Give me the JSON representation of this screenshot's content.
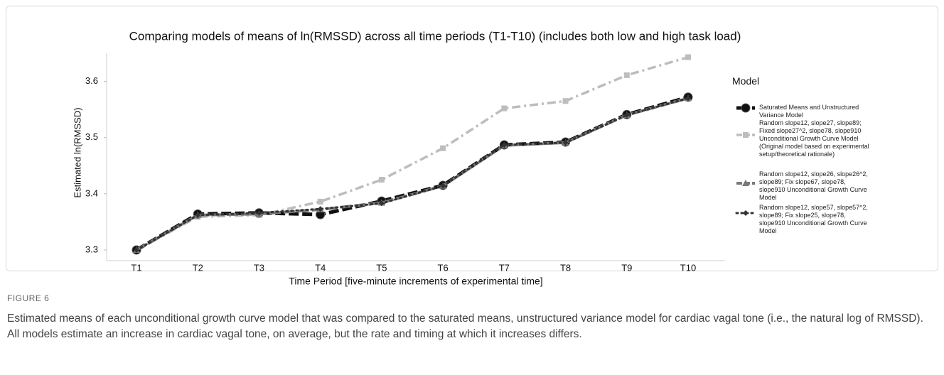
{
  "chart_data": {
    "type": "line",
    "title": "Comparing models of means of ln(RMSSD) across all time periods (T1-T10) (includes both low and high task load)",
    "x_label": "Time Period [five-minute increments of experimental time]",
    "y_label": "Estimated ln(RMSSD)",
    "legend_title": "Model",
    "categories": [
      "T1",
      "T2",
      "T3",
      "T4",
      "T5",
      "T6",
      "T7",
      "T8",
      "T9",
      "T10"
    ],
    "ylim": [
      3.281,
      3.65
    ],
    "yticks": [
      3.3,
      3.4,
      3.5,
      3.6
    ],
    "grid": false,
    "series": [
      {
        "name": "Saturated Means and Unstructured Variance Model",
        "color": "#111111",
        "values": [
          3.3,
          3.364,
          3.366,
          3.363,
          3.387,
          3.415,
          3.487,
          3.492,
          3.541,
          3.572
        ]
      },
      {
        "name": "Random slope12, slope27, slope89; Fixed slope27^2, slope78, slope910 Unconditional Growth Curve Model (Original model based on experimental setup/theoretical rationale)",
        "color": "#bdbdbd",
        "values": [
          3.3,
          3.359,
          3.362,
          3.386,
          3.425,
          3.481,
          3.552,
          3.565,
          3.611,
          3.643
        ]
      },
      {
        "name": "Random slope12, slope26, slope26^2, slope89; Fix slope67, slope78, slope910 Unconditional Growth Curve Model",
        "color": "#7a7a7a",
        "values": [
          3.3,
          3.362,
          3.364,
          3.372,
          3.384,
          3.414,
          3.486,
          3.491,
          3.54,
          3.57
        ]
      },
      {
        "name": "Random slope12, slope57, slope57^2, slope89; Fix slope25, slope78, slope910 Unconditional Growth Curve Model",
        "color": "#333333",
        "values": [
          3.3,
          3.362,
          3.366,
          3.373,
          3.383,
          3.414,
          3.487,
          3.491,
          3.54,
          3.57
        ]
      }
    ]
  },
  "figure_label": "FIGURE 6",
  "caption": "Estimated means of each unconditional growth curve model that was compared to the saturated means, unstructured variance model for cardiac vagal tone (i.e., the natural log of RMSSD). All models estimate an increase in cardiac vagal tone, on average, but the rate and timing at which it increases differs."
}
